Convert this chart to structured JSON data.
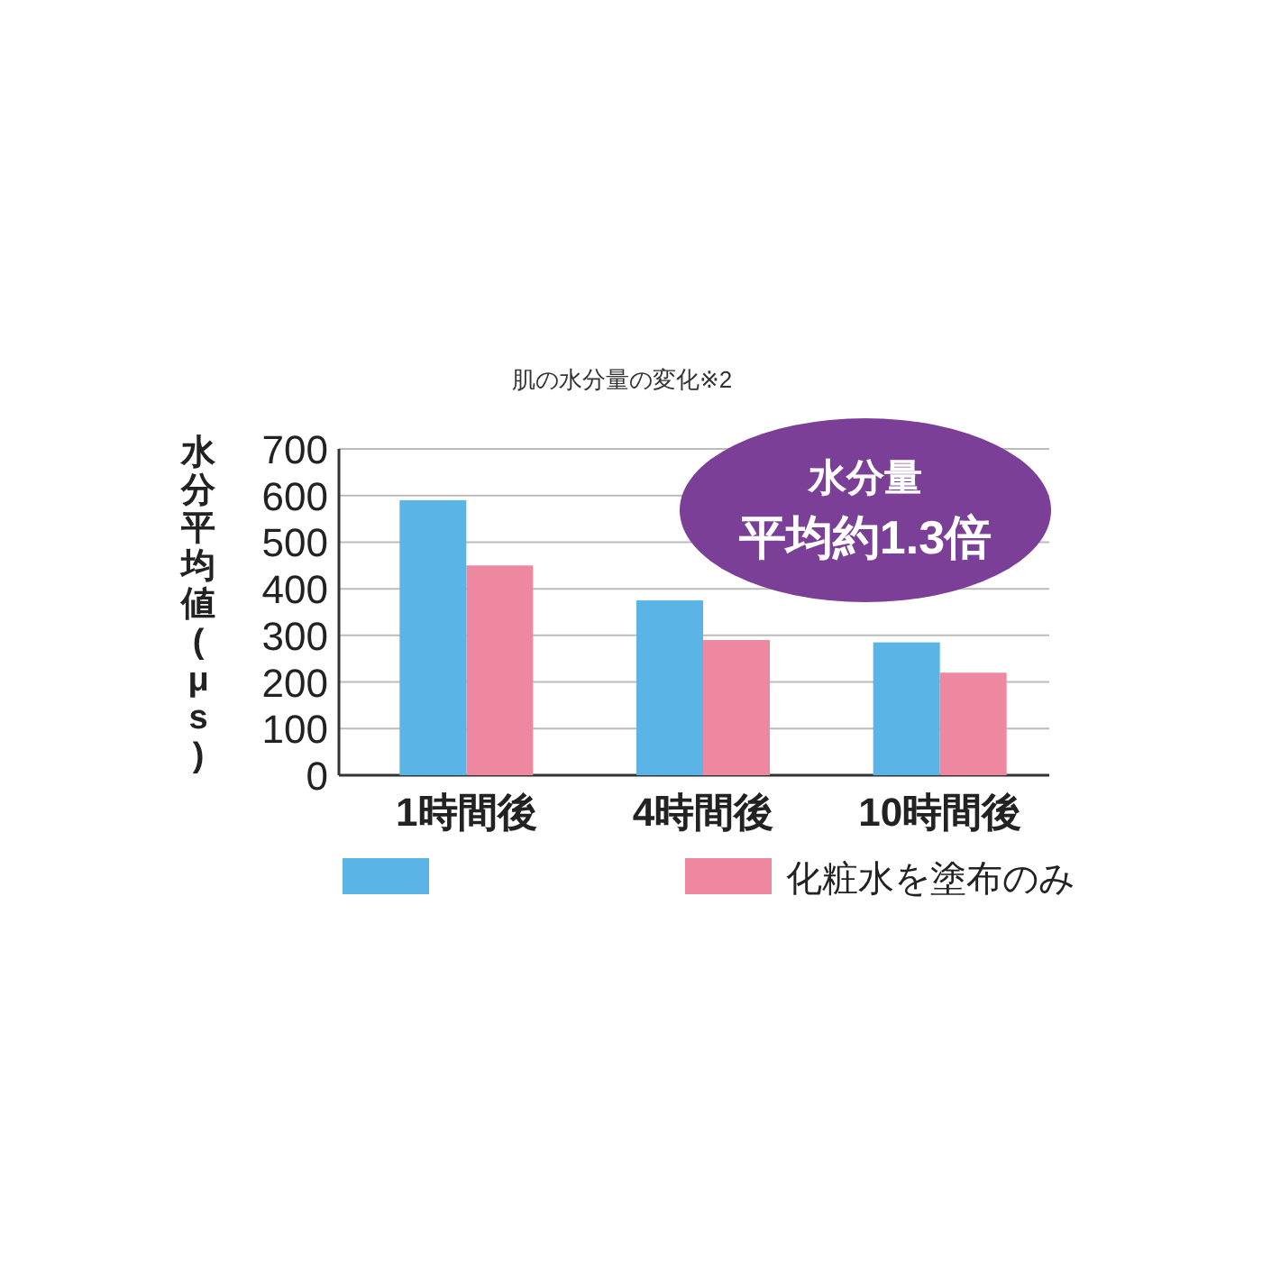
{
  "chart_data": {
    "type": "bar",
    "title": "肌の水分量の変化※2",
    "ylabel": "水分平均値(μs)",
    "categories": [
      "1時間後",
      "4時間後",
      "10時間後"
    ],
    "series": [
      {
        "color": "#5ab4e5",
        "values": [
          590,
          375,
          285
        ]
      },
      {
        "name": "化粧水を塗布のみ",
        "color": "#ee87a0",
        "values": [
          450,
          290,
          220
        ]
      }
    ],
    "ylim": [
      0,
      700
    ],
    "yticks": [
      0,
      100,
      200,
      300,
      400,
      500,
      600,
      700
    ],
    "grid": "y",
    "legend": "bottom",
    "annotations": [
      "水分量",
      "平均約1.3倍"
    ]
  }
}
